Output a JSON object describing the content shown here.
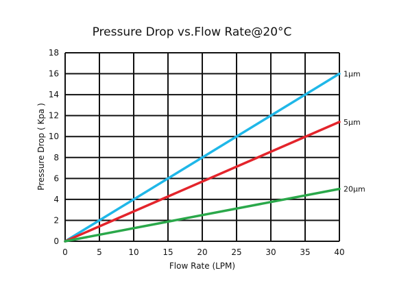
{
  "chart_data": {
    "type": "line",
    "title": "Pressure Drop vs.Flow Rate@20°C",
    "xlabel": "Flow Rate (LPM)",
    "ylabel": "Pressure Drop  ( Kpa )",
    "xlim": [
      0,
      40
    ],
    "ylim": [
      0,
      18
    ],
    "xticks": [
      0,
      5,
      10,
      15,
      20,
      25,
      30,
      35,
      40
    ],
    "yticks": [
      0,
      2,
      4,
      6,
      8,
      10,
      12,
      14,
      16,
      18
    ],
    "grid": true,
    "series": [
      {
        "name": "1μm",
        "color": "#1fb7e8",
        "x": [
          0,
          40
        ],
        "y": [
          0,
          16.0
        ]
      },
      {
        "name": "5μm",
        "color": "#e3242b",
        "x": [
          0,
          40
        ],
        "y": [
          0,
          11.4
        ]
      },
      {
        "name": "20μm",
        "color": "#2aa84a",
        "x": [
          0,
          40
        ],
        "y": [
          0,
          5.0
        ]
      }
    ]
  }
}
